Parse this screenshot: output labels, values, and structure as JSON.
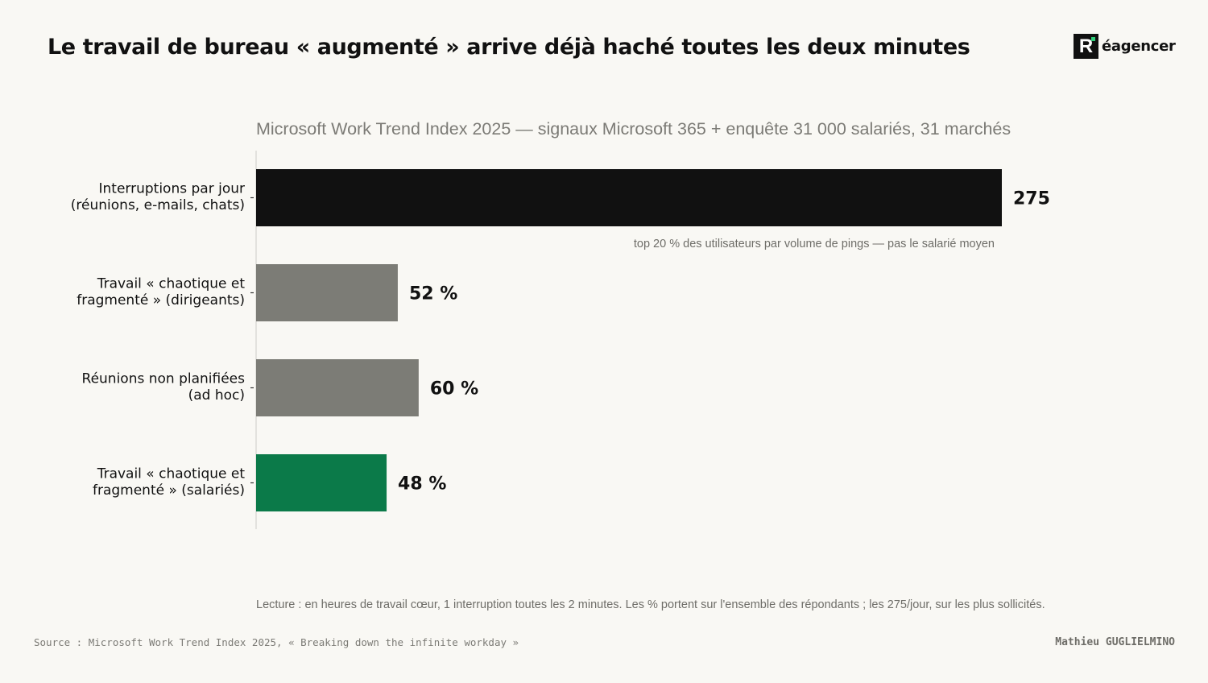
{
  "header": {
    "title": "Le travail de bureau « augmenté » arrive déjà haché toutes les deux minutes",
    "logo_letter": "R",
    "logo_text": "éagencer"
  },
  "chart_data": {
    "type": "bar",
    "orientation": "horizontal",
    "subtitle": "Microsoft Work Trend Index 2025 — signaux Microsoft 365 + enquête 31 000 salariés, 31 marchés",
    "categories": [
      [
        "Interruptions par jour",
        "(réunions, e-mails, chats)"
      ],
      [
        "Travail « chaotique et",
        "fragmenté » (dirigeants)"
      ],
      [
        "Réunions non planifiées",
        "(ad hoc)"
      ],
      [
        "Travail « chaotique et",
        "fragmenté » (salariés)"
      ]
    ],
    "values": [
      275,
      52,
      60,
      48
    ],
    "value_labels": [
      "275",
      "52 %",
      "60 %",
      "48 %"
    ],
    "bar_colors": [
      "#111111",
      "#7c7c76",
      "#7c7c76",
      "#0b7a49"
    ],
    "relative_length_scale": [
      1.0,
      0.19,
      0.218,
      0.175
    ],
    "annotations": [
      {
        "bar_index": 0,
        "text": "top 20 % des utilisateurs par volume de pings — pas le salarié moyen"
      }
    ],
    "xlabel": "",
    "ylabel": "",
    "grid": false,
    "legend": "none"
  },
  "footer": {
    "note": "Lecture : en heures de travail cœur, 1 interruption toutes les 2 minutes. Les % portent sur l'ensemble des répondants ; les 275/jour, sur les plus sollicités.",
    "source": "Source : Microsoft Work Trend Index 2025, « Breaking down the infinite workday »",
    "author": "Mathieu GUGLIELMINO"
  },
  "colors": {
    "background": "#f9f8f4",
    "text": "#111111",
    "muted_text": "#7c7b76",
    "accent_green": "#0b7a49",
    "logo_dot": "#2fd07a"
  }
}
